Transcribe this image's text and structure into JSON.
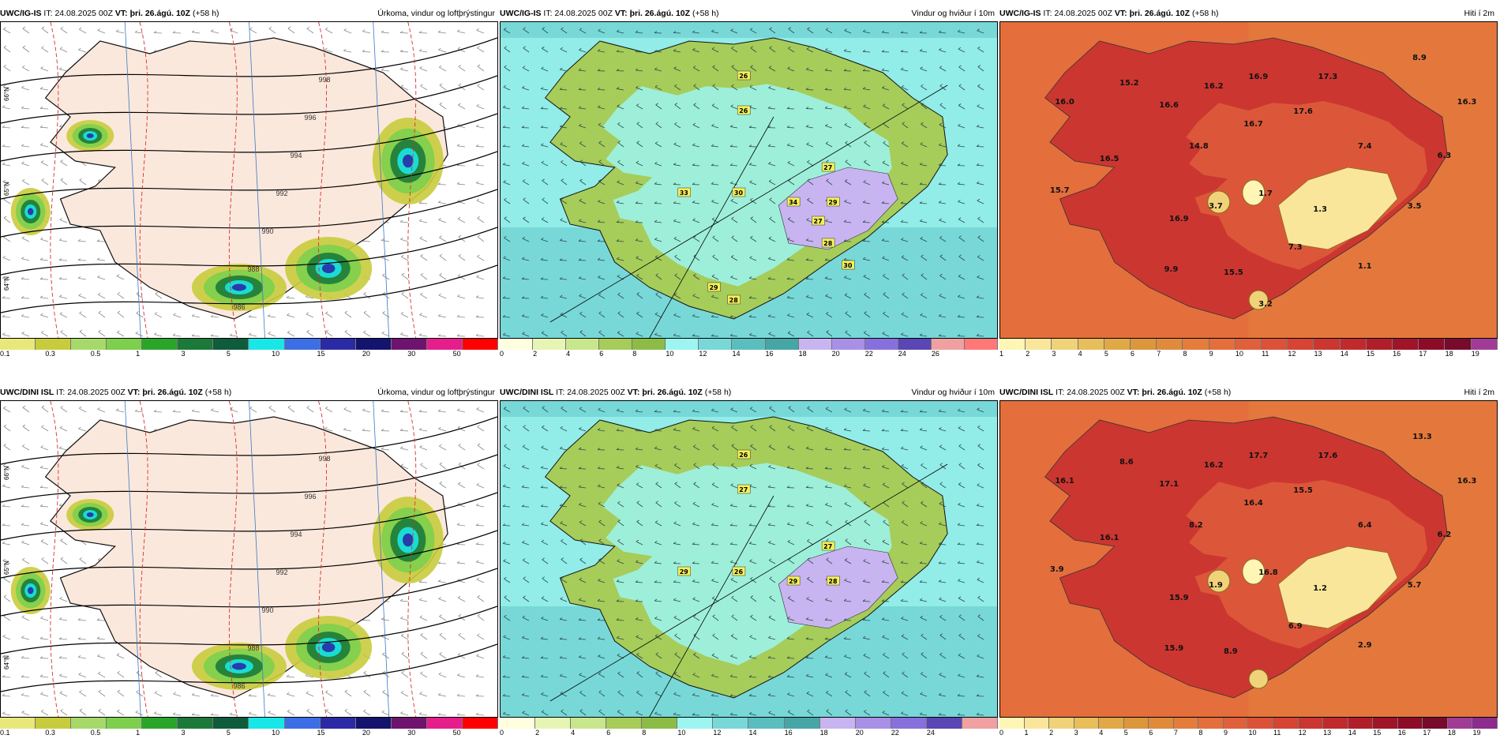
{
  "rows": [
    {
      "model": "UWC/IG-IS",
      "precip": {
        "it_label": "IT:",
        "it": "24.08.2025 00Z",
        "vt_label": "VT:",
        "vt": "þri. 26.ágú. 10Z",
        "lead": "(+58 h)",
        "variable": "Úrkoma, vindur og loftþrýstingur",
        "legend_ticks": [
          "0.1",
          "0.3",
          "0.5",
          "1",
          "3",
          "5",
          "10",
          "15",
          "20",
          "30",
          "50"
        ],
        "legend_colors": [
          "#e8e87a",
          "#c8cc3c",
          "#a6d96a",
          "#7dcf4d",
          "#2aa52a",
          "#1b7a3a",
          "#0f5c3c",
          "#19e6e6",
          "#3c6ee6",
          "#2a2aa6",
          "#14146e",
          "#6e146e",
          "#e61e8c",
          "#ff0000"
        ],
        "isobars": [
          "986",
          "988",
          "990",
          "992",
          "994",
          "996",
          "998"
        ],
        "lat_labels": [
          "66°N",
          "65°N",
          "64°N"
        ]
      },
      "wind": {
        "it_label": "IT:",
        "it": "24.08.2025 00Z",
        "vt_label": "VT:",
        "vt": "þri. 26.ágú. 10Z",
        "lead": "(+58 h)",
        "variable": "Vindur og hviður í 10m",
        "legend_ticks": [
          "0",
          "2",
          "4",
          "6",
          "8",
          "10",
          "12",
          "14",
          "16",
          "18",
          "20",
          "22",
          "24",
          "26"
        ],
        "legend_colors": [
          "#ffffe0",
          "#e6f5b4",
          "#c8e68c",
          "#a6cc5a",
          "#8cbc46",
          "#9cf5f0",
          "#78d8d8",
          "#5abebe",
          "#46a6a6",
          "#c8b4f0",
          "#a890e6",
          "#8870dc",
          "#5a46b4",
          "#f0a0a0",
          "#ff7878"
        ],
        "gusts": [
          "26",
          "26",
          "27",
          "33",
          "30",
          "34",
          "29",
          "27",
          "28",
          "30",
          "29",
          "28"
        ]
      },
      "temp": {
        "it_label": "IT:",
        "it": "24.08.2025 00Z",
        "vt_label": "VT:",
        "vt": "þri. 26.ágú. 10Z",
        "lead": "(+58 h)",
        "variable": "Hiti í 2m",
        "legend_ticks": [
          "1",
          "2",
          "3",
          "4",
          "5",
          "6",
          "7",
          "8",
          "9",
          "10",
          "11",
          "12",
          "13",
          "14",
          "15",
          "16",
          "17",
          "18",
          "19"
        ],
        "legend_colors": [
          "#fff5b4",
          "#fae69a",
          "#f0d278",
          "#e8be5a",
          "#e0a846",
          "#dc963c",
          "#e08a3c",
          "#e47c3c",
          "#e46e3c",
          "#e0603c",
          "#dc5238",
          "#d64434",
          "#cc3630",
          "#c02a2c",
          "#b01e2a",
          "#a01428",
          "#8c0c28",
          "#780a2c",
          "#a03c96"
        ],
        "values": [
          "8.9",
          "15.2",
          "16.2",
          "16.9",
          "17.3",
          "16.0",
          "16.6",
          "17.6",
          "16.7",
          "16.3",
          "14.8",
          "7.4",
          "6.3",
          "16.5",
          "1.7",
          "15.7",
          "3.7",
          "1.3",
          "3.5",
          "16.9",
          "7.3",
          "9.9",
          "15.5",
          "1.1",
          "3.2"
        ]
      }
    },
    {
      "model": "UWC/DINI ISL",
      "precip": {
        "it_label": "IT:",
        "it": "24.08.2025 00Z",
        "vt_label": "VT:",
        "vt": "þri. 26.ágú. 10Z",
        "lead": "(+58 h)",
        "variable": "Úrkoma, vindur og loftþrýstingur",
        "legend_ticks": [
          "0.1",
          "0.3",
          "0.5",
          "1",
          "3",
          "5",
          "10",
          "15",
          "20",
          "30",
          "50"
        ],
        "legend_colors": [
          "#e8e87a",
          "#c8cc3c",
          "#a6d96a",
          "#7dcf4d",
          "#2aa52a",
          "#1b7a3a",
          "#0f5c3c",
          "#19e6e6",
          "#3c6ee6",
          "#2a2aa6",
          "#14146e",
          "#6e146e",
          "#e61e8c",
          "#ff0000"
        ],
        "isobars": [
          "986",
          "988",
          "990",
          "992",
          "994",
          "996",
          "998"
        ],
        "lat_labels": [
          "66°N",
          "65°N",
          "64°N"
        ]
      },
      "wind": {
        "it_label": "IT:",
        "it": "24.08.2025 00Z",
        "vt_label": "VT:",
        "vt": "þri. 26.ágú. 10Z",
        "lead": "(+58 h)",
        "variable": "Vindur og hviður í 10m",
        "legend_ticks": [
          "0",
          "2",
          "4",
          "6",
          "8",
          "10",
          "12",
          "14",
          "16",
          "18",
          "20",
          "22",
          "24"
        ],
        "legend_colors": [
          "#ffffe0",
          "#e6f5b4",
          "#c8e68c",
          "#a6cc5a",
          "#8cbc46",
          "#9cf5f0",
          "#78d8d8",
          "#5abebe",
          "#46a6a6",
          "#c8b4f0",
          "#a890e6",
          "#8870dc",
          "#5a46b4",
          "#f0a0a0"
        ],
        "gusts": [
          "26",
          "27",
          "27",
          "29",
          "26",
          "29",
          "28"
        ]
      },
      "temp": {
        "it_label": "IT:",
        "it": "24.08.2025 00Z",
        "vt_label": "VT:",
        "vt": "þri. 26.ágú. 10Z",
        "lead": "(+58 h)",
        "variable": "Hiti í 2m",
        "legend_ticks": [
          "0",
          "1",
          "2",
          "3",
          "4",
          "5",
          "6",
          "7",
          "8",
          "9",
          "10",
          "11",
          "12",
          "13",
          "14",
          "15",
          "16",
          "17",
          "18",
          "19"
        ],
        "legend_colors": [
          "#fff5b4",
          "#fae69a",
          "#f0d278",
          "#e8be5a",
          "#e0a846",
          "#dc963c",
          "#e08a3c",
          "#e47c3c",
          "#e46e3c",
          "#e0603c",
          "#dc5238",
          "#d64434",
          "#cc3630",
          "#c02a2c",
          "#b01e2a",
          "#a01428",
          "#8c0c28",
          "#780a2c",
          "#a03c96",
          "#8c2c8c"
        ],
        "values": [
          "13.3",
          "8.6",
          "16.2",
          "17.7",
          "17.6",
          "16.1",
          "17.1",
          "15.5",
          "16.4",
          "16.3",
          "8.2",
          "6.4",
          "6.2",
          "16.1",
          "16.8",
          "3.9",
          "1.9",
          "1.2",
          "5.7",
          "15.9",
          "6.9",
          "15.9",
          "8.9",
          "2.9"
        ]
      }
    }
  ]
}
